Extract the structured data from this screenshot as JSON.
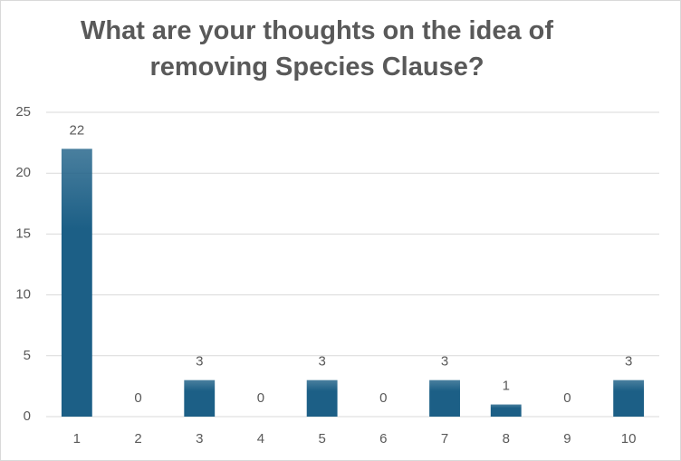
{
  "chart_data": {
    "type": "bar",
    "title": "What are your thoughts on the idea of removing Species Clause?",
    "categories": [
      "1",
      "2",
      "3",
      "4",
      "5",
      "6",
      "7",
      "8",
      "9",
      "10"
    ],
    "values": [
      22,
      0,
      3,
      0,
      3,
      0,
      3,
      1,
      0,
      3
    ],
    "color": "#1c5f86",
    "ylim": [
      0,
      25
    ],
    "yticks": [
      0,
      5,
      10,
      15,
      20,
      25
    ],
    "grid": true
  }
}
